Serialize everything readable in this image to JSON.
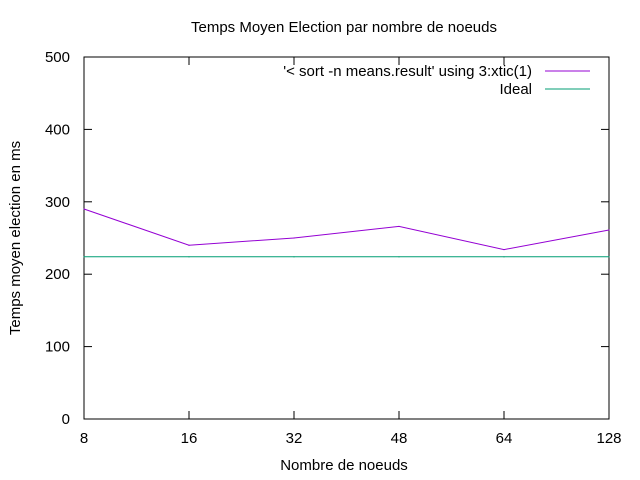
{
  "chart_data": {
    "type": "line",
    "title": "Temps Moyen Election par nombre de noeuds",
    "xlabel": "Nombre de noeuds",
    "ylabel": "Temps moyen election en ms",
    "categories": [
      "8",
      "16",
      "32",
      "48",
      "64",
      "128"
    ],
    "ylim": [
      0,
      500
    ],
    "yticks": [
      0,
      100,
      200,
      300,
      400,
      500
    ],
    "grid": false,
    "legend_position": "top-right",
    "series": [
      {
        "name": "'< sort -n means.result' using 3:xtic(1)",
        "values": [
          290,
          240,
          250,
          266,
          234,
          261
        ],
        "color": "#9400d3"
      },
      {
        "name": "Ideal",
        "values": [
          224,
          224,
          224,
          224,
          224,
          224
        ],
        "color": "#009e73"
      }
    ]
  }
}
